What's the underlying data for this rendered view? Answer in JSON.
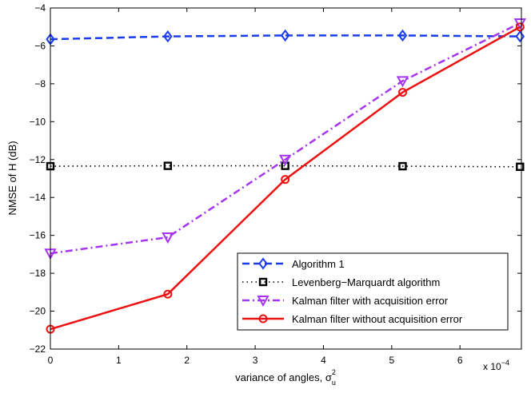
{
  "chart_data": {
    "type": "line",
    "title": "",
    "xlabel": "variance of angles, σ",
    "xlabel_sup": "2",
    "xlabel_sub": "u",
    "ylabel": "NMSE of H (dB)",
    "x_exponent_label": "x 10",
    "x_exponent_power": "−4",
    "xlim": [
      0,
      6.9
    ],
    "ylim": [
      -22,
      -4
    ],
    "x_ticks": [
      0,
      1,
      2,
      3,
      4,
      5,
      6
    ],
    "x_tick_labels": [
      "0",
      "1",
      "2",
      "3",
      "4",
      "5",
      "6"
    ],
    "y_ticks": [
      -22,
      -20,
      -18,
      -16,
      -14,
      -12,
      -10,
      -8,
      -6,
      -4
    ],
    "y_tick_labels": [
      "−22",
      "−20",
      "−18",
      "−16",
      "−14",
      "−12",
      "−10",
      "−8",
      "−6",
      "−4"
    ],
    "grid": false,
    "legend_position": "bottom-right",
    "x": [
      0.0,
      1.72,
      3.44,
      5.16,
      6.88
    ],
    "series": [
      {
        "name": "Algorithm 1",
        "color": "#1a3cf0",
        "dash": "dashed",
        "marker": "diamond",
        "values": [
          -5.65,
          -5.5,
          -5.45,
          -5.45,
          -5.5
        ]
      },
      {
        "name": "Levenberg−Marquardt algorithm",
        "color": "#000000",
        "dash": "dotted",
        "marker": "square",
        "values": [
          -12.35,
          -12.33,
          -12.33,
          -12.35,
          -12.38
        ]
      },
      {
        "name": "Kalman filter with  acquisition error",
        "color": "#a535f0",
        "dash": "dashdot",
        "marker": "triangle-down",
        "values": [
          -16.95,
          -16.1,
          -12.0,
          -7.85,
          -4.8
        ]
      },
      {
        "name": "Kalman filter without acquisition error",
        "color": "#ee1111",
        "dash": "solid",
        "marker": "circle",
        "values": [
          -20.95,
          -19.1,
          -13.05,
          -8.45,
          -5.0
        ]
      }
    ]
  }
}
